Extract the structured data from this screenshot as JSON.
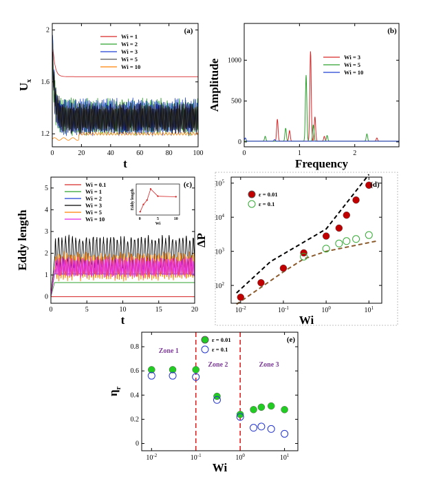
{
  "chart_data": [
    {
      "id": "a",
      "type": "line",
      "tag": "(a)",
      "xlabel": "t",
      "ylabel": "U_x",
      "xlim": [
        0,
        100
      ],
      "ylim": [
        1.1,
        2.05
      ],
      "xticks": [
        0,
        20,
        40,
        60,
        80,
        100
      ],
      "yticks": [
        1.2,
        1.6,
        2
      ],
      "series": [
        {
          "name": "Wi = 1",
          "color": "#d62728",
          "kind": "decay",
          "start": 1.95,
          "end": 1.64,
          "amp": 0.0,
          "period": 2
        },
        {
          "name": "Wi = 2",
          "color": "#2ca02c",
          "kind": "osc",
          "start": 1.95,
          "mean": 1.33,
          "amp": 0.15,
          "period": 1.4
        },
        {
          "name": "Wi = 3",
          "color": "#1f3fd4",
          "kind": "osc",
          "start": 1.95,
          "mean": 1.33,
          "amp": 0.15,
          "period": 1.0
        },
        {
          "name": "Wi = 5",
          "color": "#555555",
          "kind": "osc",
          "start": 1.9,
          "mean": 1.32,
          "amp": 0.12,
          "period": 0.9
        },
        {
          "name": "Wi = 10",
          "color": "#ff8000",
          "kind": "decay",
          "start": 1.2,
          "end": 1.21,
          "amp": 0.0,
          "period": 2
        }
      ]
    },
    {
      "id": "b",
      "type": "line",
      "tag": "(b)",
      "xlabel": "Frequency",
      "ylabel": "Amplitude",
      "xlim": [
        0,
        2.8
      ],
      "ylim": [
        -60,
        1450
      ],
      "xticks": [
        0,
        1,
        2
      ],
      "yticks": [
        0,
        500,
        1000
      ],
      "series": [
        {
          "name": "Wi = 3",
          "color": "#d62728",
          "peaks": [
            [
              0.6,
              270
            ],
            [
              0.82,
              130
            ],
            [
              1.2,
              1100
            ],
            [
              1.28,
              300
            ],
            [
              1.45,
              60
            ],
            [
              2.4,
              40
            ]
          ]
        },
        {
          "name": "Wi = 5",
          "color": "#2ca02c",
          "peaks": [
            [
              0.38,
              60
            ],
            [
              0.75,
              160
            ],
            [
              1.12,
              810
            ],
            [
              1.25,
              200
            ],
            [
              1.5,
              70
            ],
            [
              2.22,
              90
            ]
          ]
        },
        {
          "name": "Wi = 10",
          "color": "#1f3fd4",
          "peaks": [
            [
              0.02,
              40
            ],
            [
              0.55,
              20
            ]
          ]
        }
      ]
    },
    {
      "id": "c",
      "type": "line",
      "tag": "(c)",
      "xlabel": "t",
      "ylabel": "Eddy length",
      "xlim": [
        0,
        20
      ],
      "ylim": [
        -0.3,
        5.5
      ],
      "xticks": [
        0,
        5,
        10,
        15,
        20
      ],
      "yticks": [
        0,
        1,
        2,
        3,
        4,
        5
      ],
      "series": [
        {
          "name": "Wi = 0.1",
          "color": "#d62728",
          "kind": "flat",
          "mean": 0.0,
          "amp": 0,
          "period": 1
        },
        {
          "name": "Wi = 1",
          "color": "#2ca02c",
          "kind": "flat",
          "mean": 0.65,
          "amp": 0,
          "period": 1
        },
        {
          "name": "Wi = 2",
          "color": "#1f3fd4",
          "kind": "flat",
          "mean": 1.05,
          "amp": 0.05,
          "period": 1
        },
        {
          "name": "Wi = 3",
          "color": "#000000",
          "kind": "osc",
          "mean": 2.05,
          "amp": 0.8,
          "period": 0.48
        },
        {
          "name": "Wi = 5",
          "color": "#ff8000",
          "kind": "osc",
          "mean": 1.4,
          "amp": 0.7,
          "period": 0.3
        },
        {
          "name": "Wi = 10",
          "color": "#e020e0",
          "kind": "osc",
          "mean": 1.35,
          "amp": 0.5,
          "period": 0.22
        }
      ],
      "inset": {
        "ylabel": "Eddy length",
        "xlabel": "Wi",
        "xticks": [
          0,
          5,
          10
        ],
        "x": [
          0.1,
          1,
          2,
          3,
          5,
          10
        ],
        "y": [
          0.0,
          0.65,
          1.05,
          2.05,
          1.4,
          1.35
        ]
      }
    },
    {
      "id": "d",
      "type": "scatter",
      "tag": "(d)",
      "xlabel": "Wi",
      "ylabel": "ΔP",
      "xscale": "log",
      "yscale": "log",
      "xlim": [
        0.006,
        20
      ],
      "ylim": [
        30,
        150000
      ],
      "xticks": [
        "10^-2",
        "10^-1",
        "10^0",
        "10^1"
      ],
      "yticks": [
        "10^2",
        "10^3",
        "10^4",
        "10^5"
      ],
      "series": [
        {
          "name": "ε = 0.01",
          "color": "#c00000",
          "fill": true,
          "x": [
            0.01,
            0.03,
            0.1,
            0.3,
            1,
            2,
            3,
            5,
            10
          ],
          "y": [
            45,
            120,
            320,
            900,
            2800,
            4800,
            11500,
            32000,
            87000
          ]
        },
        {
          "name": "ε = 0.1",
          "color": "#33aa33",
          "fill": false,
          "x": [
            0.3,
            1,
            2,
            3,
            5,
            10
          ],
          "y": [
            700,
            1200,
            1700,
            2000,
            2300,
            3000
          ]
        }
      ],
      "bounds": [
        {
          "color": "#000000",
          "x": [
            0.008,
            0.05,
            1,
            10
          ],
          "y": [
            60,
            500,
            4500,
            180000
          ]
        },
        {
          "color": "#8b5a2b",
          "x": [
            0.008,
            0.1,
            0.3,
            1,
            15
          ],
          "y": [
            28,
            250,
            600,
            1000,
            2000
          ]
        }
      ]
    },
    {
      "id": "e",
      "type": "scatter",
      "tag": "(e)",
      "xlabel": "Wi",
      "ylabel": "η_r",
      "xscale": "log",
      "xlim": [
        0.006,
        20
      ],
      "ylim": [
        -0.06,
        0.92
      ],
      "xticks": [
        "10^-2",
        "10^-1",
        "10^0",
        "10^1"
      ],
      "yticks": [
        0,
        0.2,
        0.4,
        0.6,
        0.8
      ],
      "zones": [
        "Zone 1",
        "Zone 2",
        "Zone 3"
      ],
      "zone_bounds": [
        0.1,
        1
      ],
      "series": [
        {
          "name": "ε = 0.01",
          "color": "#22cc22",
          "fill": true,
          "x": [
            0.01,
            0.03,
            0.1,
            0.3,
            1,
            2,
            3,
            5,
            10
          ],
          "y": [
            0.61,
            0.61,
            0.61,
            0.39,
            0.24,
            0.28,
            0.3,
            0.31,
            0.28
          ]
        },
        {
          "name": "ε = 0.1",
          "color": "#2233cc",
          "fill": false,
          "x": [
            0.01,
            0.03,
            0.1,
            0.3,
            1,
            2,
            3,
            5,
            10
          ],
          "y": [
            0.56,
            0.56,
            0.55,
            0.36,
            0.22,
            0.13,
            0.14,
            0.12,
            0.08
          ]
        }
      ]
    }
  ]
}
